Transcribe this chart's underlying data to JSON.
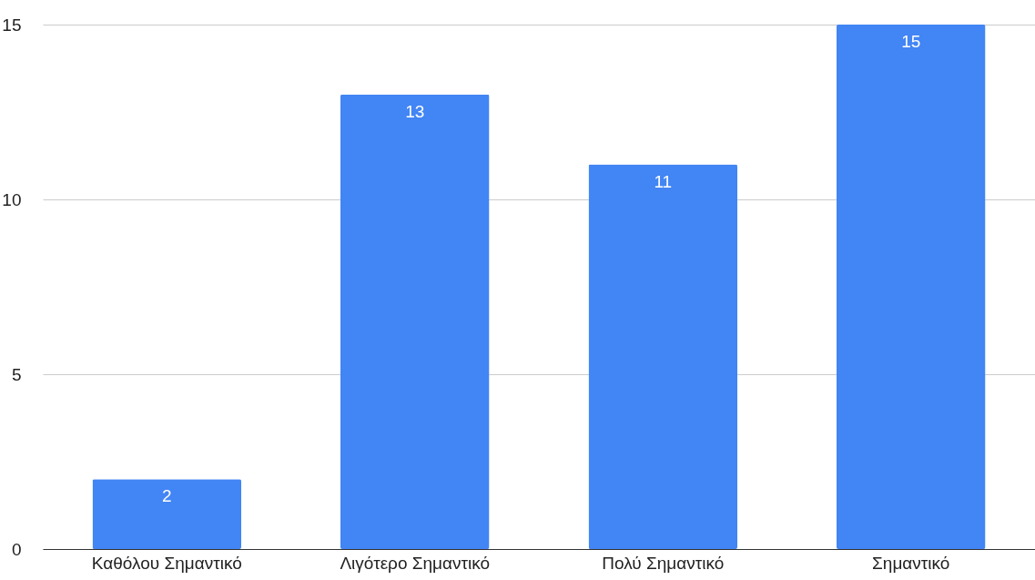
{
  "chart_data": {
    "type": "bar",
    "categories": [
      "Καθόλου Σημαντικό",
      "Λιγότερο Σημαντικό",
      "Πολύ Σημαντικό",
      "Σημαντικό"
    ],
    "values": [
      2,
      13,
      11,
      15
    ],
    "color": "#4285f4",
    "ylim": [
      0,
      15
    ],
    "yticks": [
      0,
      5,
      10,
      15
    ],
    "grid": "y",
    "data_labels": true
  }
}
